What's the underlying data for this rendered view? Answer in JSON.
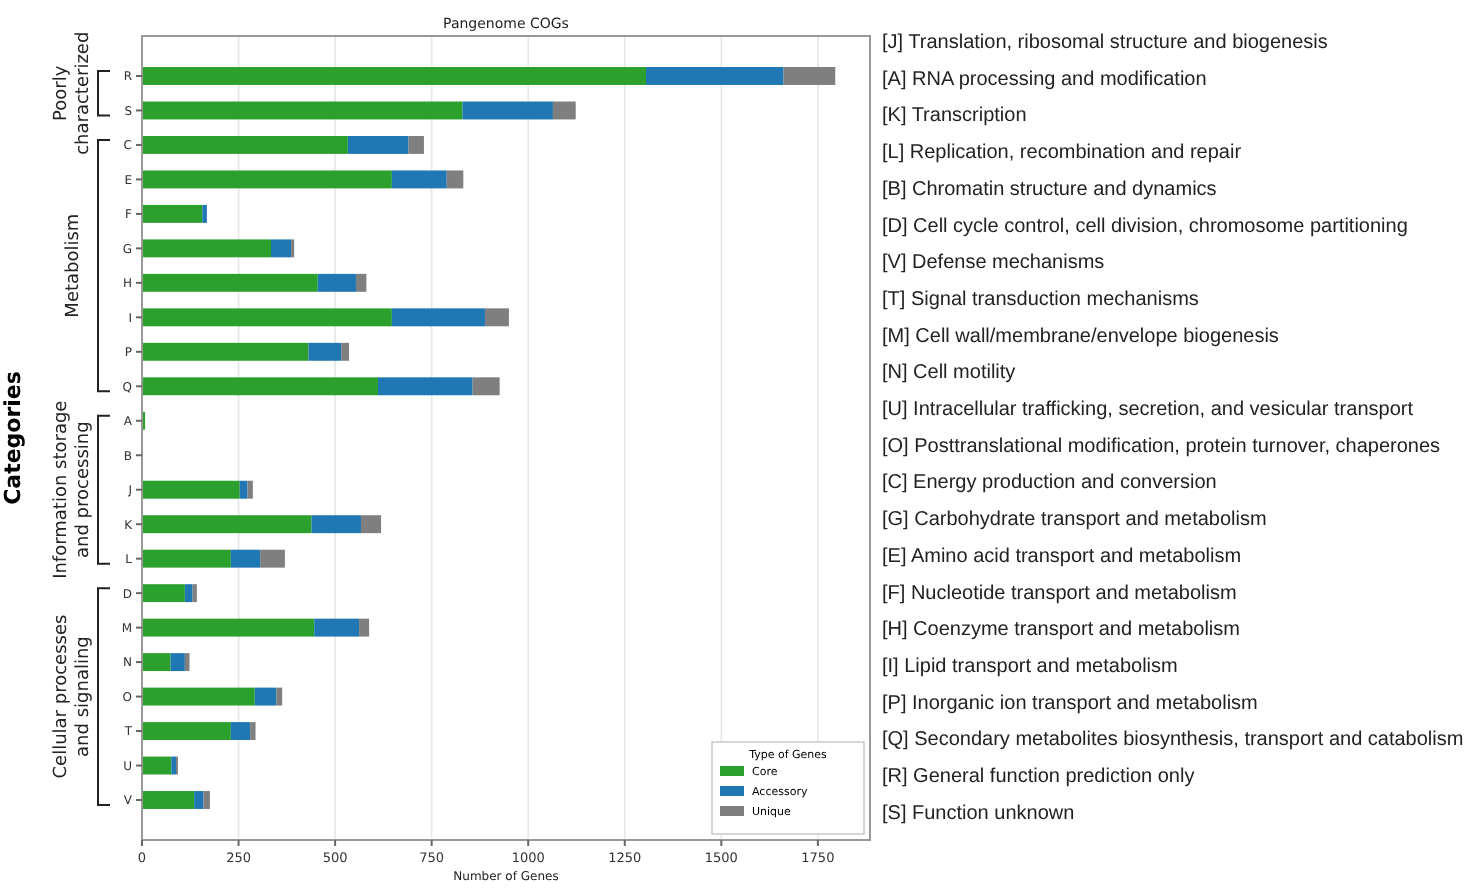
{
  "chart_data": {
    "type": "bar",
    "orientation": "horizontal",
    "stacked": true,
    "title": "Pangenome COGs",
    "xlabel": "Number of Genes",
    "ylabel": "Categories",
    "legend_title": "Type of Genes",
    "legend": "bottom right",
    "grid": "x",
    "categories": [
      "R",
      "S",
      "C",
      "E",
      "F",
      "G",
      "H",
      "I",
      "P",
      "Q",
      "A",
      "B",
      "J",
      "K",
      "L",
      "D",
      "M",
      "N",
      "O",
      "T",
      "U",
      "V"
    ],
    "xlim": [
      0,
      1885
    ],
    "xticks": [
      0,
      250,
      500,
      750,
      1000,
      1250,
      1500,
      1750
    ],
    "series": [
      {
        "name": "Core",
        "color": "#2ca02c",
        "values": [
          1305,
          830,
          533,
          647,
          156,
          334,
          455,
          647,
          431,
          611,
          8,
          0,
          253,
          439,
          230,
          111,
          446,
          74,
          292,
          230,
          76,
          135
        ]
      },
      {
        "name": "Accessory",
        "color": "#1f77b4",
        "values": [
          356,
          234,
          157,
          142,
          12,
          52,
          99,
          241,
          85,
          245,
          0,
          0,
          20,
          128,
          76,
          20,
          116,
          37,
          56,
          50,
          12,
          24
        ]
      },
      {
        "name": "Unique",
        "color": "#7f7f7f",
        "values": [
          134,
          59,
          40,
          43,
          0,
          8,
          27,
          62,
          20,
          70,
          0,
          0,
          14,
          52,
          64,
          11,
          26,
          12,
          15,
          14,
          5,
          17
        ]
      }
    ],
    "annotations": [
      "Poorly characterized",
      "Metabolism",
      "Information storage and processing",
      "Cellular processes and signaling",
      "[J] Translation, ribosomal structure and biogenesis",
      "[A] RNA processing and modification",
      "[K] Transcription",
      "[L] Replication, recombination and repair",
      "[B] Chromatin structure and dynamics",
      "[D] Cell cycle control, cell division, chromosome partitioning",
      "[V] Defense mechanisms",
      "[T] Signal transduction mechanisms",
      "[M] Cell wall/membrane/envelope biogenesis",
      "[N] Cell motility",
      "[U] Intracellular trafficking, secretion, and vesicular transport",
      "[O] Posttranslational modification, protein turnover, chaperones",
      "[C] Energy production and conversion",
      "[G] Carbohydrate transport and metabolism",
      "[E] Amino acid transport and metabolism",
      "[F] Nucleotide transport and metabolism",
      "[H] Coenzyme transport and metabolism",
      "[I] Lipid transport and metabolism",
      "[P] Inorganic ion transport and metabolism",
      "[Q] Secondary metabolites biosynthesis, transport and catabolism",
      "[R] General function prediction only",
      "[S] Function unknown"
    ]
  }
}
